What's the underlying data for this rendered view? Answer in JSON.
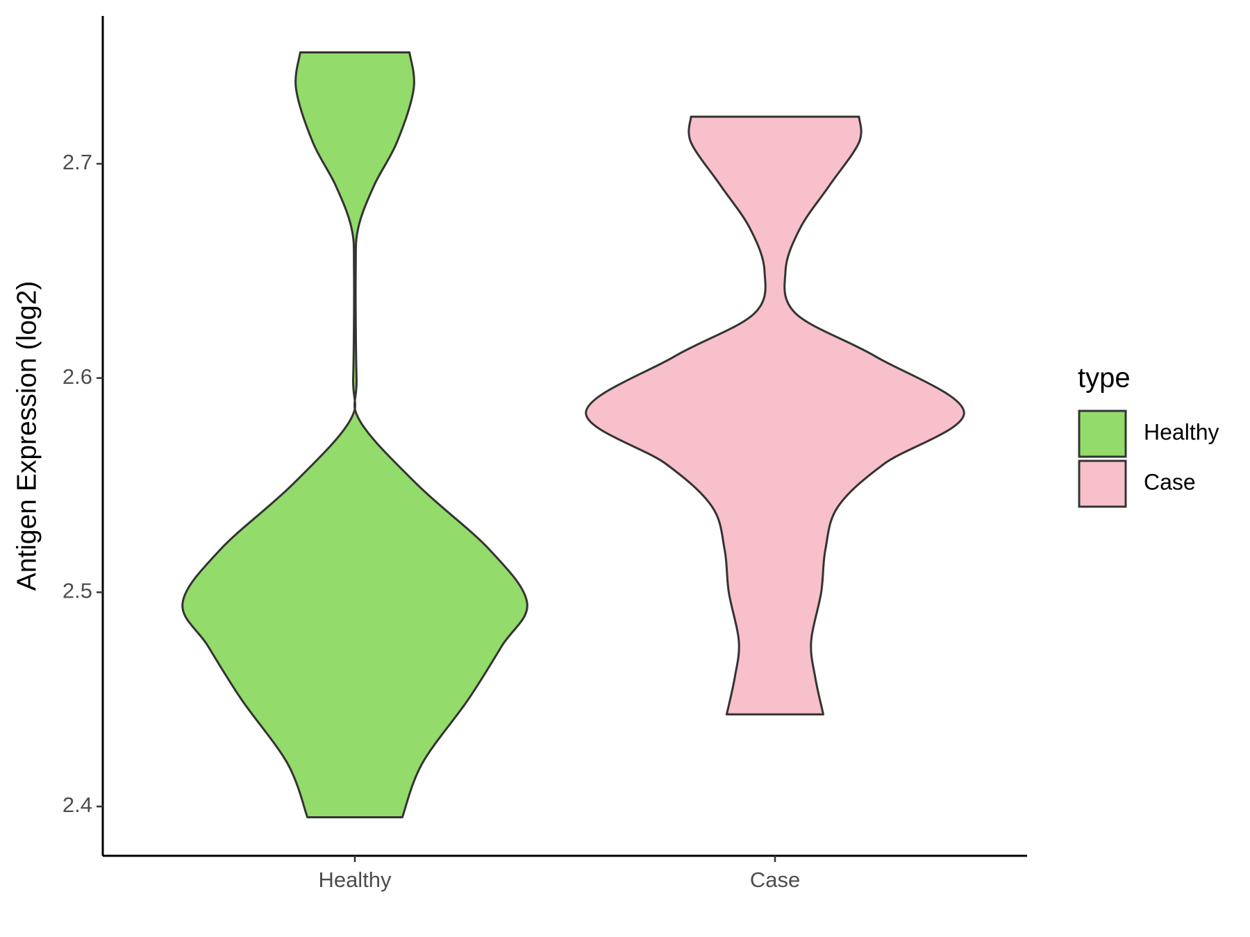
{
  "chart_data": {
    "type": "violin",
    "y_label": "Antigen Expression (log2)",
    "categories": [
      "Healthy",
      "Case"
    ],
    "legend_title": "type",
    "series": [
      {
        "name": "Healthy",
        "color": "#93DB6A",
        "y": [
          2.395,
          2.42,
          2.45,
          2.475,
          2.495,
          2.52,
          2.55,
          2.58,
          2.6,
          2.65,
          2.67,
          2.69,
          2.71,
          2.735,
          2.752
        ],
        "width": [
          0.113,
          0.16,
          0.27,
          0.35,
          0.41,
          0.32,
          0.15,
          0.012,
          0.004,
          0.002,
          0.008,
          0.046,
          0.1,
          0.14,
          0.13
        ]
      },
      {
        "name": "Case",
        "color": "#F7C0CB",
        "y": [
          2.443,
          2.46,
          2.477,
          2.5,
          2.52,
          2.54,
          2.56,
          2.584,
          2.61,
          2.63,
          2.65,
          2.67,
          2.69,
          2.71,
          2.722
        ],
        "width": [
          0.115,
          0.096,
          0.086,
          0.11,
          0.12,
          0.15,
          0.26,
          0.45,
          0.24,
          0.05,
          0.025,
          0.06,
          0.13,
          0.2,
          0.2
        ]
      }
    ],
    "ylim": [
      2.377,
      2.769
    ],
    "yticks": [
      2.4,
      2.5,
      2.6,
      2.7
    ],
    "grid": false,
    "legend_position": "right"
  }
}
